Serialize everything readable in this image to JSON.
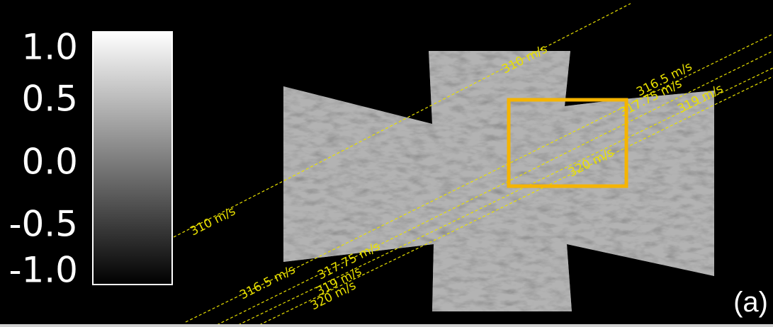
{
  "colorbar": {
    "ticks": [
      "1.0",
      "0.5",
      "0.0",
      "-0.5",
      "-1.0"
    ]
  },
  "contours": [
    {
      "label": "310 m/s"
    },
    {
      "label": "316.5 m/s"
    },
    {
      "label": "317.75 m/s"
    },
    {
      "label": "319 m/s"
    },
    {
      "label": "320 m/s"
    }
  ],
  "panel_label": "(a)"
}
